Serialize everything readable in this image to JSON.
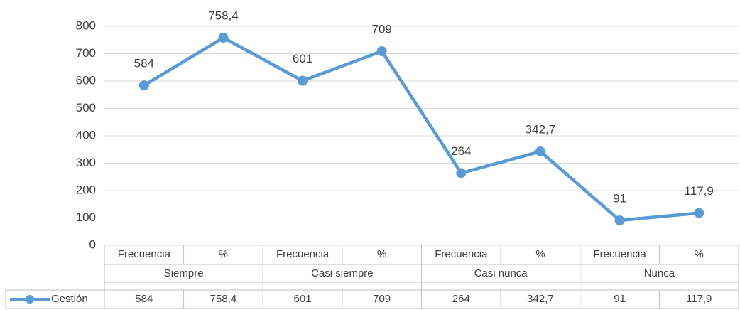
{
  "chart_data": {
    "type": "line",
    "categories": [
      "Frecuencia",
      "%",
      "Frecuencia",
      "%",
      "Frecuencia",
      "%",
      "Frecuencia",
      "%"
    ],
    "groups": [
      "Siempre",
      "Casi siempre",
      "Casi nunca",
      "Nunca"
    ],
    "series": [
      {
        "name": "Gestión",
        "color": "#5b9bd5",
        "values": [
          584,
          758.4,
          601,
          709,
          264,
          342.7,
          91,
          117.9
        ],
        "value_labels": [
          "584",
          "758,4",
          "601",
          "709",
          "264",
          "342,7",
          "91",
          "117,9"
        ]
      }
    ],
    "ylim": [
      0,
      800
    ],
    "yticks": [
      0,
      100,
      200,
      300,
      400,
      500,
      600,
      700,
      800
    ],
    "grid": true
  }
}
